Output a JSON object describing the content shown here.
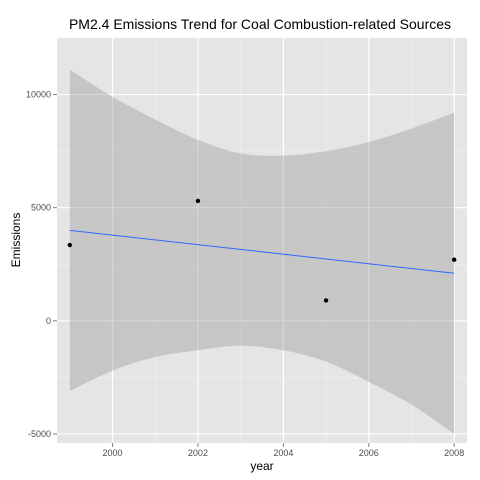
{
  "chart_data": {
    "type": "scatter",
    "title": "PM2.4 Emissions Trend for Coal Combustion-related Sources",
    "xlabel": "year",
    "ylabel": "Emissions",
    "xlim": [
      1998.7,
      2008.3
    ],
    "ylim": [
      -5400,
      12500
    ],
    "x_ticks": [
      2000,
      2002,
      2004,
      2006,
      2008
    ],
    "y_ticks": [
      -5000,
      0,
      5000,
      10000
    ],
    "grid": true,
    "points": [
      {
        "x": 1999,
        "y": 3350
      },
      {
        "x": 2002,
        "y": 5300
      },
      {
        "x": 2005,
        "y": 900
      },
      {
        "x": 2008,
        "y": 2700
      }
    ],
    "trend_line": {
      "x": [
        1999,
        2008
      ],
      "y": [
        4000,
        2100
      ]
    },
    "confidence_band": {
      "x": [
        1999,
        2000,
        2001,
        2002,
        2003,
        2004,
        2005,
        2006,
        2007,
        2008
      ],
      "upper": [
        11100,
        9900,
        8900,
        8000,
        7400,
        7300,
        7500,
        7900,
        8500,
        9200
      ],
      "lower": [
        -3100,
        -2200,
        -1600,
        -1300,
        -1100,
        -1300,
        -1800,
        -2700,
        -3700,
        -5000
      ]
    },
    "colors": {
      "panel": "#e5e5e5",
      "grid_major": "#ffffff",
      "grid_minor": "#f2f2f2",
      "band": "#999999",
      "trend": "#3366ff",
      "point": "#000000"
    }
  }
}
